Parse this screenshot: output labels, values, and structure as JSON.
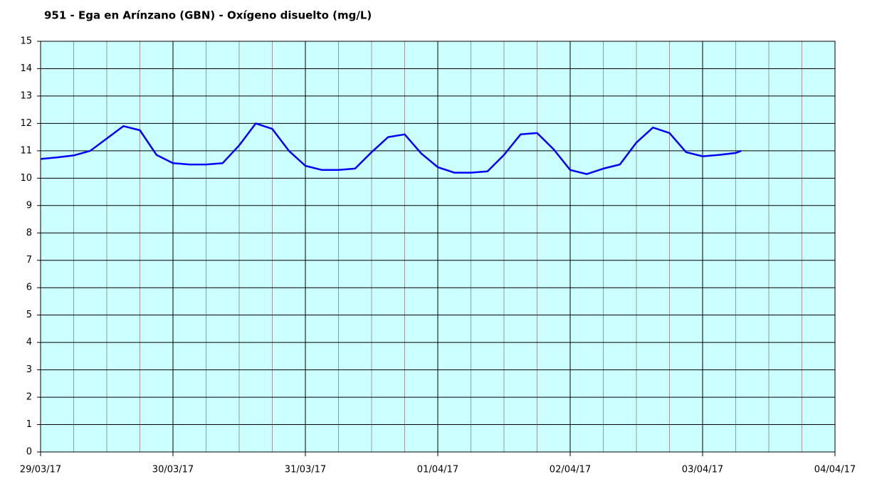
{
  "chart_data": {
    "type": "line",
    "title": "951 - Ega en Arínzano (GBN) - Oxígeno disuelto (mg/L)",
    "color": "#0000ff",
    "x": [
      "2017-03-29T00:00",
      "2017-03-29T03:00",
      "2017-03-29T06:00",
      "2017-03-29T09:00",
      "2017-03-29T12:00",
      "2017-03-29T15:00",
      "2017-03-29T18:00",
      "2017-03-29T21:00",
      "2017-03-30T00:00",
      "2017-03-30T03:00",
      "2017-03-30T06:00",
      "2017-03-30T09:00",
      "2017-03-30T12:00",
      "2017-03-30T15:00",
      "2017-03-30T18:00",
      "2017-03-30T21:00",
      "2017-03-31T00:00",
      "2017-03-31T03:00",
      "2017-03-31T06:00",
      "2017-03-31T09:00",
      "2017-03-31T12:00",
      "2017-03-31T15:00",
      "2017-03-31T18:00",
      "2017-03-31T21:00",
      "2017-04-01T00:00",
      "2017-04-01T03:00",
      "2017-04-01T06:00",
      "2017-04-01T09:00",
      "2017-04-01T12:00",
      "2017-04-01T15:00",
      "2017-04-01T18:00",
      "2017-04-01T21:00",
      "2017-04-02T00:00",
      "2017-04-02T03:00",
      "2017-04-02T06:00",
      "2017-04-02T09:00",
      "2017-04-02T12:00",
      "2017-04-02T15:00",
      "2017-04-02T18:00",
      "2017-04-02T21:00",
      "2017-04-03T00:00",
      "2017-04-03T03:00",
      "2017-04-03T06:00",
      "2017-04-03T07:00"
    ],
    "values": [
      10.7,
      10.76,
      10.83,
      11.0,
      11.45,
      11.9,
      11.75,
      10.85,
      10.55,
      10.5,
      10.5,
      10.55,
      11.2,
      12.0,
      11.8,
      11.0,
      10.45,
      10.3,
      10.3,
      10.35,
      10.95,
      11.5,
      11.6,
      10.9,
      10.4,
      10.2,
      10.2,
      10.25,
      10.85,
      11.6,
      11.65,
      11.05,
      10.3,
      10.15,
      10.35,
      10.5,
      11.3,
      11.85,
      11.65,
      10.95,
      10.8,
      10.85,
      10.92,
      11.0
    ],
    "xlim": [
      "2017-03-29",
      "2017-04-04"
    ],
    "xticks": [
      {
        "value": "2017-03-29",
        "label": "29/03/17"
      },
      {
        "value": "2017-03-30",
        "label": "30/03/17"
      },
      {
        "value": "2017-03-31",
        "label": "31/03/17"
      },
      {
        "value": "2017-04-01",
        "label": "01/04/17"
      },
      {
        "value": "2017-04-02",
        "label": "02/04/17"
      },
      {
        "value": "2017-04-03",
        "label": "03/04/17"
      },
      {
        "value": "2017-04-04",
        "label": "04/04/17"
      }
    ],
    "xminorticks": [
      "2017-03-29T06:00",
      "2017-03-29T12:00",
      "2017-03-29T18:00",
      "2017-03-30T06:00",
      "2017-03-30T12:00",
      "2017-03-30T18:00",
      "2017-03-31T06:00",
      "2017-03-31T12:00",
      "2017-03-31T18:00",
      "2017-04-01T06:00",
      "2017-04-01T12:00",
      "2017-04-01T18:00",
      "2017-04-02T06:00",
      "2017-04-02T12:00",
      "2017-04-02T18:00",
      "2017-04-03T06:00",
      "2017-04-03T12:00",
      "2017-04-03T18:00"
    ],
    "ylim": [
      0,
      15
    ],
    "yticks": [
      0,
      1,
      2,
      3,
      4,
      5,
      6,
      7,
      8,
      9,
      10,
      11,
      12,
      13,
      14,
      15
    ],
    "grid": true
  }
}
